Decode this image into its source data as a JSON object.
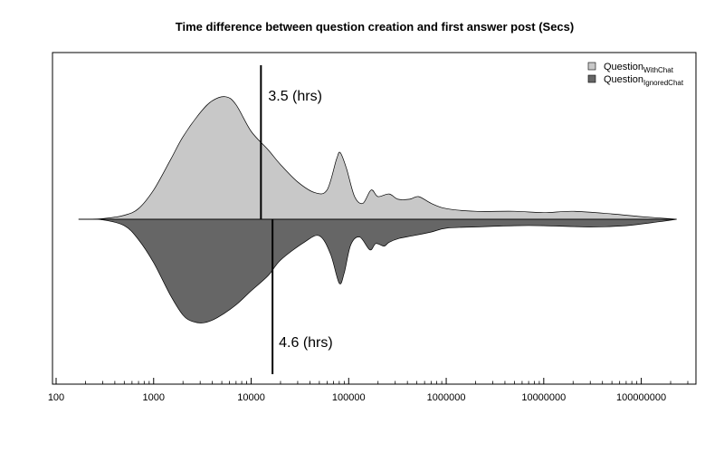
{
  "chart_data": {
    "type": "area",
    "variant": "mirrored density (bean plot), log-scale x axis",
    "title": "Time difference between question creation and first answer post (Secs)",
    "x_scale": "log10",
    "x_range": [
      100,
      300000000
    ],
    "x_ticks": [
      100,
      1000,
      10000,
      100000,
      1000000,
      10000000,
      100000000
    ],
    "x_tick_labels": [
      "100",
      "1000",
      "10000",
      "100000",
      "1000000",
      "10000000",
      "100000000"
    ],
    "y_label": "",
    "x_label": "",
    "legend_position": "top-right",
    "series": [
      {
        "name": "Question",
        "name_subscript": "WithChat",
        "side": "upper",
        "color": "#c8c8c8",
        "median_seconds": 12600,
        "median_label": "3.5 (hrs)",
        "density": [
          [
            170,
            0.0
          ],
          [
            300,
            0.005
          ],
          [
            500,
            0.03
          ],
          [
            700,
            0.08
          ],
          [
            1000,
            0.22
          ],
          [
            1500,
            0.45
          ],
          [
            2000,
            0.62
          ],
          [
            3000,
            0.8
          ],
          [
            4000,
            0.89
          ],
          [
            5500,
            0.92
          ],
          [
            7000,
            0.86
          ],
          [
            10000,
            0.66
          ],
          [
            15000,
            0.52
          ],
          [
            20000,
            0.41
          ],
          [
            30000,
            0.28
          ],
          [
            45000,
            0.2
          ],
          [
            60000,
            0.22
          ],
          [
            75000,
            0.45
          ],
          [
            82000,
            0.5
          ],
          [
            95000,
            0.38
          ],
          [
            115000,
            0.17
          ],
          [
            140000,
            0.12
          ],
          [
            170000,
            0.22
          ],
          [
            200000,
            0.17
          ],
          [
            260000,
            0.19
          ],
          [
            320000,
            0.15
          ],
          [
            420000,
            0.15
          ],
          [
            520000,
            0.17
          ],
          [
            700000,
            0.12
          ],
          [
            1000000,
            0.08
          ],
          [
            2000000,
            0.06
          ],
          [
            5000000,
            0.06
          ],
          [
            10000000,
            0.05
          ],
          [
            20000000,
            0.06
          ],
          [
            50000000,
            0.04
          ],
          [
            100000000,
            0.02
          ],
          [
            230000000,
            0.0
          ]
        ]
      },
      {
        "name": "Question",
        "name_subscript": "IgnoredChat",
        "side": "lower",
        "color": "#666666",
        "median_seconds": 16560,
        "median_label": "4.6 (hrs)",
        "density": [
          [
            170,
            0.0
          ],
          [
            300,
            0.005
          ],
          [
            500,
            0.05
          ],
          [
            700,
            0.16
          ],
          [
            1000,
            0.34
          ],
          [
            1500,
            0.6
          ],
          [
            2000,
            0.75
          ],
          [
            2500,
            0.8
          ],
          [
            3300,
            0.81
          ],
          [
            4500,
            0.77
          ],
          [
            7000,
            0.67
          ],
          [
            10000,
            0.56
          ],
          [
            15000,
            0.44
          ],
          [
            20000,
            0.32
          ],
          [
            35000,
            0.18
          ],
          [
            50000,
            0.13
          ],
          [
            65000,
            0.27
          ],
          [
            80000,
            0.5
          ],
          [
            90000,
            0.42
          ],
          [
            105000,
            0.2
          ],
          [
            130000,
            0.14
          ],
          [
            165000,
            0.24
          ],
          [
            190000,
            0.19
          ],
          [
            230000,
            0.21
          ],
          [
            260000,
            0.18
          ],
          [
            330000,
            0.15
          ],
          [
            450000,
            0.13
          ],
          [
            700000,
            0.1
          ],
          [
            1000000,
            0.07
          ],
          [
            2000000,
            0.06
          ],
          [
            5000000,
            0.05
          ],
          [
            10000000,
            0.05
          ],
          [
            30000000,
            0.06
          ],
          [
            70000000,
            0.05
          ],
          [
            150000000,
            0.02
          ],
          [
            230000000,
            0.0
          ]
        ]
      }
    ]
  }
}
